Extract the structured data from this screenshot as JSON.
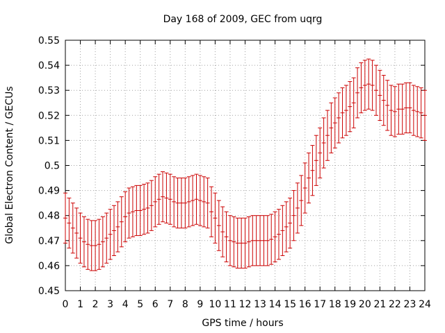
{
  "chart_data": {
    "type": "line",
    "title": "Day 168 of 2009, GEC from uqrg",
    "xlabel": "GPS time / hours",
    "ylabel": "Global Electron Content / GECUs",
    "xlim": [
      0,
      24
    ],
    "ylim": [
      0.45,
      0.55
    ],
    "grid": true,
    "x_ticks": [
      "0",
      "1",
      "2",
      "3",
      "4",
      "5",
      "6",
      "7",
      "8",
      "9",
      "10",
      "11",
      "12",
      "13",
      "14",
      "15",
      "16",
      "17",
      "18",
      "19",
      "20",
      "21",
      "22",
      "23",
      "24"
    ],
    "y_ticks": [
      "0.45",
      "0.46",
      "0.47",
      "0.48",
      "0.49",
      "0.5",
      "0.51",
      "0.52",
      "0.53",
      "0.54",
      "0.55"
    ],
    "error_bar": 0.01,
    "series": [
      {
        "name": "GEC",
        "color": "#cc0000",
        "x": [
          0,
          0.25,
          0.5,
          0.75,
          1,
          1.25,
          1.5,
          1.75,
          2,
          2.25,
          2.5,
          2.75,
          3,
          3.25,
          3.5,
          3.75,
          4,
          4.25,
          4.5,
          4.75,
          5,
          5.25,
          5.5,
          5.75,
          6,
          6.25,
          6.5,
          6.75,
          7,
          7.25,
          7.5,
          7.75,
          8,
          8.25,
          8.5,
          8.75,
          9,
          9.25,
          9.5,
          9.75,
          10,
          10.25,
          10.5,
          10.75,
          11,
          11.25,
          11.5,
          11.75,
          12,
          12.25,
          12.5,
          12.75,
          13,
          13.25,
          13.5,
          13.75,
          14,
          14.25,
          14.5,
          14.75,
          15,
          15.25,
          15.5,
          15.75,
          16,
          16.25,
          16.5,
          16.75,
          17,
          17.25,
          17.5,
          17.75,
          18,
          18.25,
          18.5,
          18.75,
          19,
          19.25,
          19.5,
          19.75,
          20,
          20.25,
          20.5,
          20.75,
          21,
          21.25,
          21.5,
          21.75,
          22,
          22.25,
          22.5,
          22.75,
          23,
          23.25,
          23.5,
          23.75,
          24
        ],
        "values": [
          0.479,
          0.477,
          0.475,
          0.473,
          0.471,
          0.4695,
          0.4685,
          0.468,
          0.468,
          0.4685,
          0.4695,
          0.471,
          0.4725,
          0.474,
          0.4755,
          0.4775,
          0.4795,
          0.481,
          0.4815,
          0.482,
          0.482,
          0.4825,
          0.483,
          0.484,
          0.4855,
          0.4865,
          0.4875,
          0.487,
          0.4865,
          0.4855,
          0.485,
          0.485,
          0.485,
          0.4855,
          0.486,
          0.4865,
          0.486,
          0.4855,
          0.485,
          0.4815,
          0.479,
          0.476,
          0.4735,
          0.4715,
          0.47,
          0.4695,
          0.469,
          0.469,
          0.469,
          0.4695,
          0.47,
          0.47,
          0.47,
          0.47,
          0.47,
          0.4705,
          0.4715,
          0.4725,
          0.474,
          0.4755,
          0.477,
          0.48,
          0.483,
          0.486,
          0.491,
          0.495,
          0.498,
          0.502,
          0.505,
          0.509,
          0.512,
          0.515,
          0.517,
          0.519,
          0.521,
          0.522,
          0.5235,
          0.525,
          0.529,
          0.531,
          0.532,
          0.5325,
          0.532,
          0.53,
          0.528,
          0.526,
          0.524,
          0.522,
          0.5215,
          0.5225,
          0.5225,
          0.523,
          0.523,
          0.522,
          0.5215,
          0.521,
          0.52
        ]
      }
    ]
  }
}
